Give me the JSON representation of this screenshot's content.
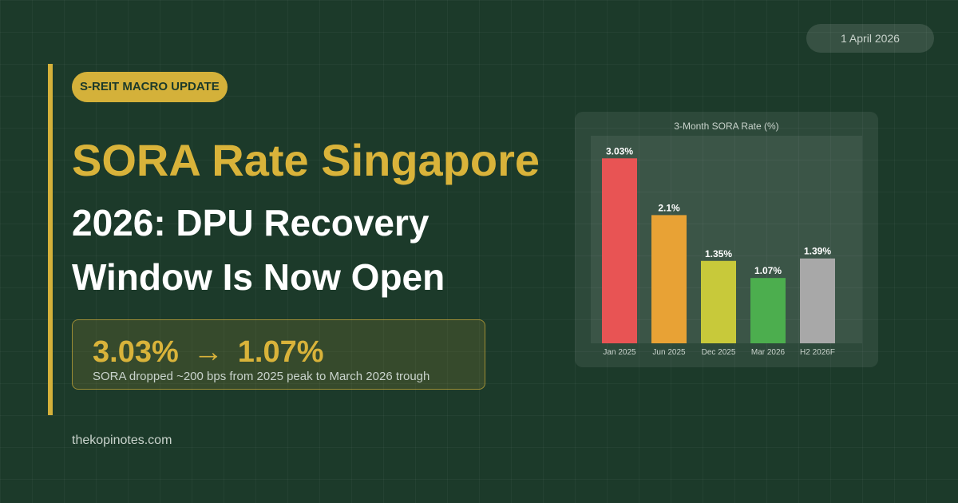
{
  "header": {
    "date": "1 April 2026"
  },
  "hero": {
    "badge": "S-REIT MACRO UPDATE",
    "title_line1": "SORA Rate Singapore",
    "title_line2a": "2026: DPU Recovery",
    "title_line2b": "Window Is Now Open"
  },
  "stat": {
    "from": "3.03%",
    "arrow": "→",
    "to": "1.07%",
    "caption": "SORA dropped ~200 bps from 2025 peak to March 2026 trough"
  },
  "footer": {
    "site": "thekopinotes.com"
  },
  "colors": {
    "accent": "#d4b13a",
    "background": "#1c3a2a"
  },
  "chart_data": {
    "type": "bar",
    "title": "3-Month SORA Rate (%)",
    "categories": [
      "Jan 2025",
      "Jun 2025",
      "Dec 2025",
      "Mar 2026",
      "H2 2026F"
    ],
    "values": [
      3.03,
      2.1,
      1.35,
      1.07,
      1.39
    ],
    "value_labels": [
      "3.03%",
      "2.1%",
      "1.35%",
      "1.07%",
      "1.39%"
    ],
    "colors": [
      "#e85454",
      "#e8a235",
      "#c8c93a",
      "#4cae4e",
      "#a8a8a8"
    ],
    "ylim": [
      0,
      3.4
    ],
    "grid": false,
    "legend": false
  }
}
